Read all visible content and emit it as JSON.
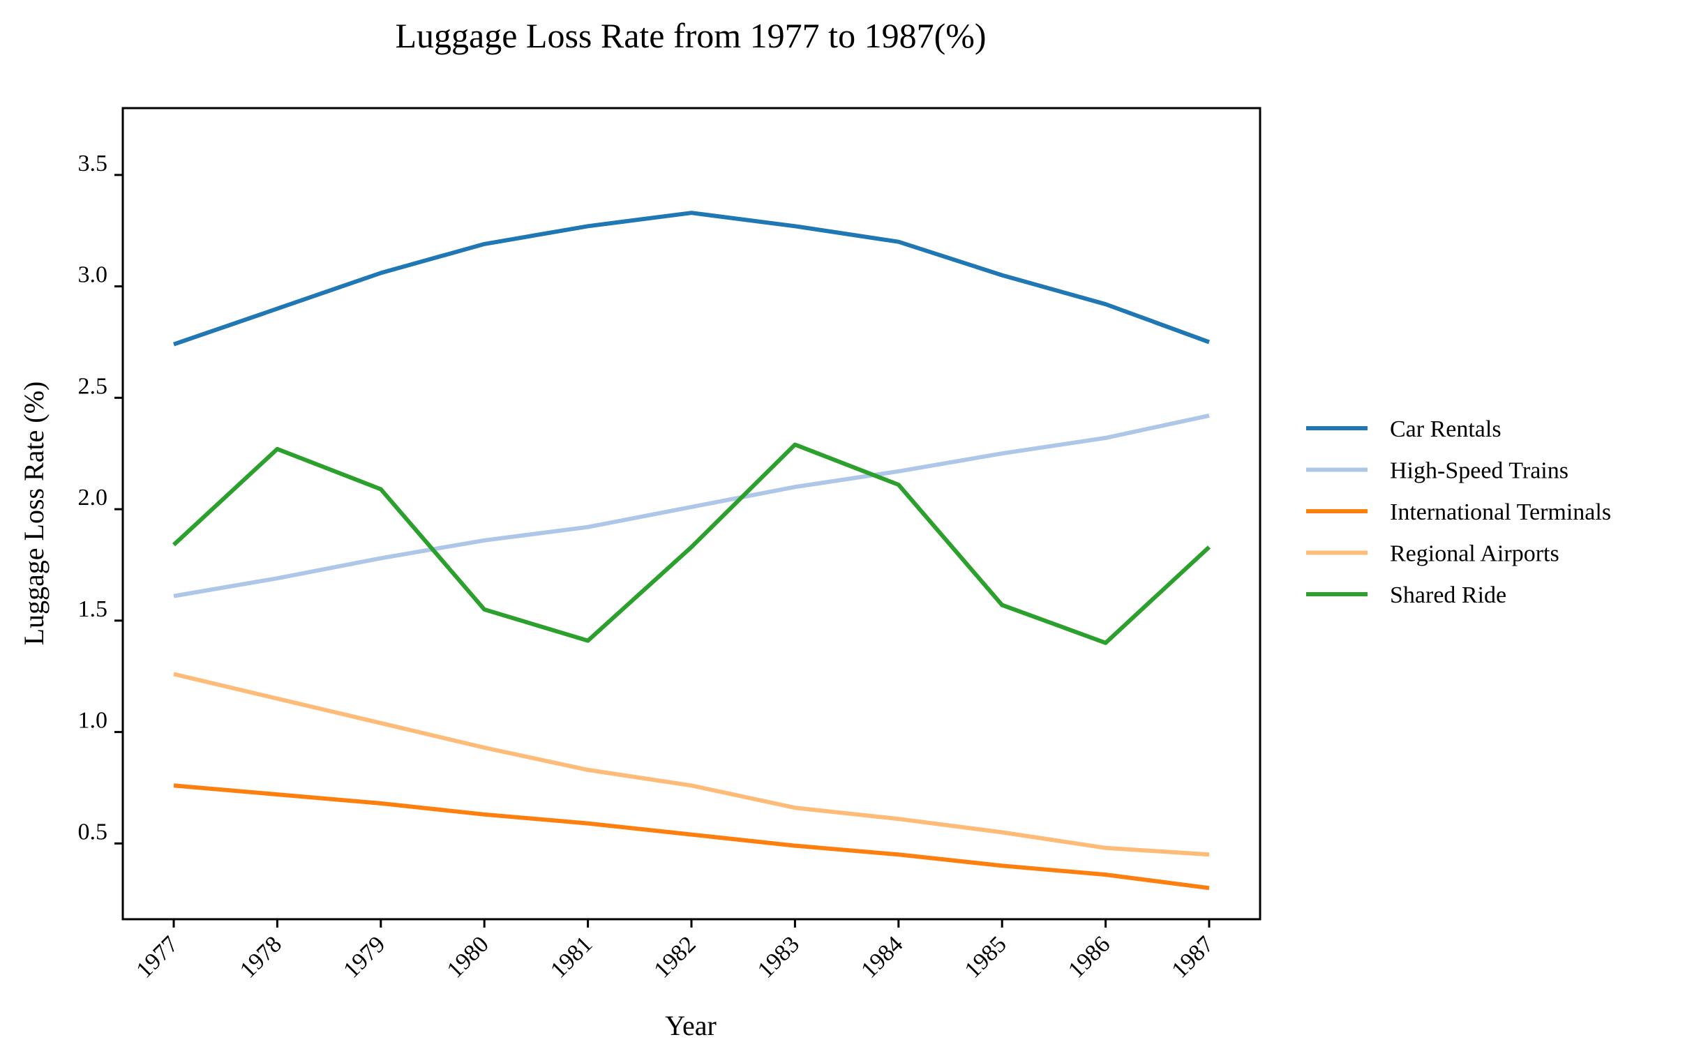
{
  "chart_data": {
    "type": "line",
    "title": "Luggage Loss Rate from 1977 to 1987(%)",
    "xlabel": "Year",
    "ylabel": "Luggage Loss Rate (%)",
    "x": [
      "1977",
      "1978",
      "1979",
      "1980",
      "1981",
      "1982",
      "1983",
      "1984",
      "1985",
      "1986",
      "1987"
    ],
    "yticks": [
      "0.5",
      "1.0",
      "1.5",
      "2.0",
      "2.5",
      "3.0",
      "3.5"
    ],
    "ylim": [
      0.16,
      3.8
    ],
    "grid": false,
    "legend_position": "right",
    "series": [
      {
        "name": "Car Rentals",
        "color": "#1f77b4",
        "values": [
          2.74,
          2.9,
          3.06,
          3.19,
          3.27,
          3.33,
          3.27,
          3.2,
          3.05,
          2.92,
          2.75
        ]
      },
      {
        "name": "High-Speed Trains",
        "color": "#aec7e8",
        "values": [
          1.61,
          1.69,
          1.78,
          1.86,
          1.92,
          2.01,
          2.1,
          2.17,
          2.25,
          2.32,
          2.42
        ]
      },
      {
        "name": "International Terminals",
        "color": "#ff7f0e",
        "values": [
          0.76,
          0.72,
          0.68,
          0.63,
          0.59,
          0.54,
          0.49,
          0.45,
          0.4,
          0.36,
          0.3
        ]
      },
      {
        "name": "Regional Airports",
        "color": "#ffbb78",
        "values": [
          1.26,
          1.15,
          1.04,
          0.93,
          0.83,
          0.76,
          0.66,
          0.61,
          0.55,
          0.48,
          0.45
        ]
      },
      {
        "name": "Shared Ride",
        "color": "#2ca02c",
        "values": [
          1.84,
          2.27,
          2.09,
          1.55,
          1.41,
          1.83,
          2.29,
          2.11,
          1.57,
          1.4,
          1.83
        ]
      }
    ]
  }
}
